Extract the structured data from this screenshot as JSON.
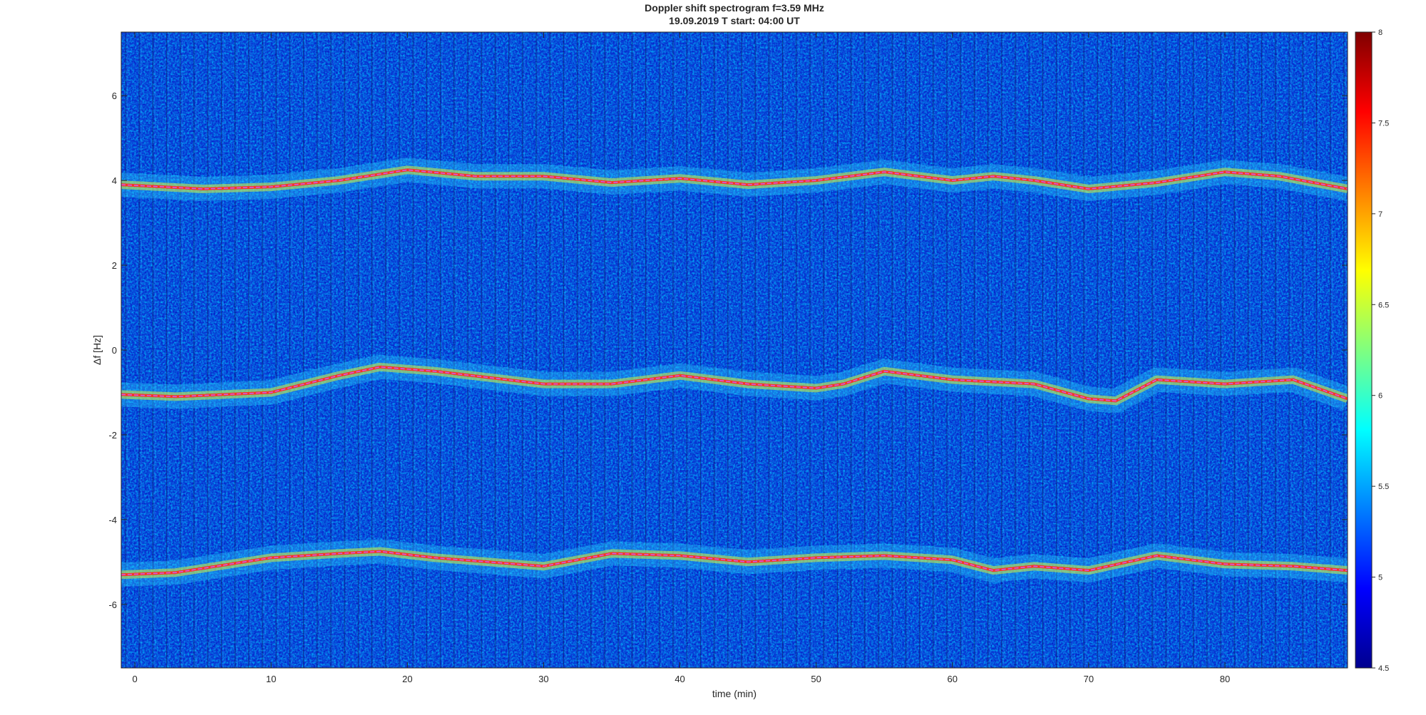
{
  "chart_data": {
    "type": "heatmap",
    "title": "Doppler shift spectrogram f=3.59 MHz",
    "subtitle": "19.09.2019   T start: 04:00 UT",
    "xlabel": "time (min)",
    "ylabel": "Δf [Hz]",
    "xlim": [
      -1,
      89
    ],
    "ylim": [
      -7.5,
      7.5
    ],
    "xticks": [
      0,
      10,
      20,
      30,
      40,
      50,
      60,
      70,
      80
    ],
    "yticks": [
      -6,
      -4,
      -2,
      0,
      2,
      4,
      6
    ],
    "colorbar": {
      "colormap": "jet",
      "limits": [
        4.5,
        8
      ],
      "ticks": [
        "4.5",
        "5",
        "5.5",
        "6",
        "6.5",
        "7",
        "7.5",
        "8"
      ]
    },
    "traces": [
      {
        "x": [
          -1,
          5,
          10,
          15,
          18,
          20,
          25,
          30,
          35,
          40,
          45,
          50,
          55,
          60,
          63,
          66,
          70,
          75,
          80,
          84,
          89
        ],
        "y": [
          3.9,
          3.8,
          3.85,
          4.0,
          4.15,
          4.25,
          4.1,
          4.1,
          3.95,
          4.05,
          3.9,
          4.0,
          4.2,
          4.0,
          4.1,
          4.0,
          3.8,
          3.95,
          4.2,
          4.1,
          3.8
        ]
      },
      {
        "x": [
          -1,
          3,
          10,
          15,
          18,
          22,
          30,
          35,
          40,
          45,
          50,
          52,
          55,
          60,
          66,
          70,
          72,
          75,
          80,
          85,
          89
        ],
        "y": [
          -1.05,
          -1.1,
          -1.0,
          -0.6,
          -0.4,
          -0.5,
          -0.8,
          -0.8,
          -0.6,
          -0.8,
          -0.9,
          -0.8,
          -0.5,
          -0.7,
          -0.8,
          -1.15,
          -1.2,
          -0.7,
          -0.8,
          -0.7,
          -1.15
        ]
      },
      {
        "x": [
          -1,
          3,
          10,
          15,
          18,
          22,
          30,
          35,
          40,
          45,
          50,
          55,
          60,
          63,
          66,
          70,
          75,
          80,
          85,
          89
        ],
        "y": [
          -5.3,
          -5.25,
          -4.9,
          -4.8,
          -4.75,
          -4.9,
          -5.1,
          -4.8,
          -4.85,
          -5.0,
          -4.9,
          -4.85,
          -4.95,
          -5.2,
          -5.1,
          -5.2,
          -4.85,
          -5.05,
          -5.1,
          -5.2
        ]
      }
    ]
  }
}
